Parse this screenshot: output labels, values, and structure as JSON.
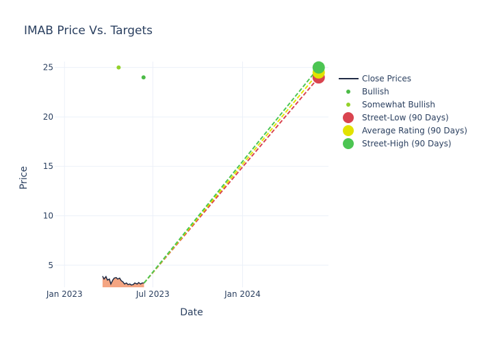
{
  "chart_data": {
    "type": "line",
    "title": "IMAB Price Vs. Targets",
    "xlabel": "Date",
    "ylabel": "Price",
    "xlim": [
      "2022-12-12",
      "2024-06-25"
    ],
    "ylim": [
      2.77,
      25.6
    ],
    "xticks": [
      {
        "date": "2023-01-01",
        "label": "Jan 2023"
      },
      {
        "date": "2023-07-01",
        "label": "Jul 2023"
      },
      {
        "date": "2024-01-01",
        "label": "Jan 2024"
      }
    ],
    "yticks": [
      5,
      10,
      15,
      20,
      25
    ],
    "grid": true,
    "legend_position": "right",
    "close_prices": {
      "name": "Close Prices",
      "color": "#1f2a44",
      "fill": "#f4a582",
      "x": [
        "2023-03-20",
        "2023-03-23",
        "2023-03-27",
        "2023-03-30",
        "2023-04-03",
        "2023-04-06",
        "2023-04-10",
        "2023-04-13",
        "2023-04-17",
        "2023-04-20",
        "2023-04-24",
        "2023-04-27",
        "2023-05-01",
        "2023-05-04",
        "2023-05-08",
        "2023-05-11",
        "2023-05-15",
        "2023-05-18",
        "2023-05-22",
        "2023-05-25",
        "2023-05-30",
        "2023-06-02",
        "2023-06-06",
        "2023-06-09",
        "2023-06-13"
      ],
      "y": [
        3.9,
        3.6,
        3.85,
        3.5,
        3.6,
        3.1,
        3.5,
        3.7,
        3.75,
        3.6,
        3.7,
        3.45,
        3.3,
        3.1,
        3.2,
        3.05,
        3.1,
        3.0,
        3.05,
        3.2,
        3.1,
        3.25,
        3.1,
        3.2,
        3.2
      ]
    },
    "bullish": {
      "name": "Bullish",
      "color": "#4cbb47",
      "points": [
        {
          "x": "2023-06-12",
          "y": 24
        }
      ]
    },
    "somewhat_bullish": {
      "name": "Somewhat Bullish",
      "color": "#93d12a",
      "points": [
        {
          "x": "2023-04-22",
          "y": 25
        }
      ]
    },
    "targets": [
      {
        "name": "Street-Low (90 Days)",
        "color": "#d9444f",
        "from": {
          "x": "2023-06-13",
          "y": 3.2
        },
        "to": {
          "x": "2024-06-05",
          "y": 24
        }
      },
      {
        "name": "Average Rating (90 Days)",
        "color": "#e2e200",
        "from": {
          "x": "2023-06-13",
          "y": 3.2
        },
        "to": {
          "x": "2024-06-05",
          "y": 24.5
        }
      },
      {
        "name": "Street-High (90 Days)",
        "color": "#4cc552",
        "from": {
          "x": "2023-06-13",
          "y": 3.2
        },
        "to": {
          "x": "2024-06-05",
          "y": 25
        }
      }
    ]
  }
}
